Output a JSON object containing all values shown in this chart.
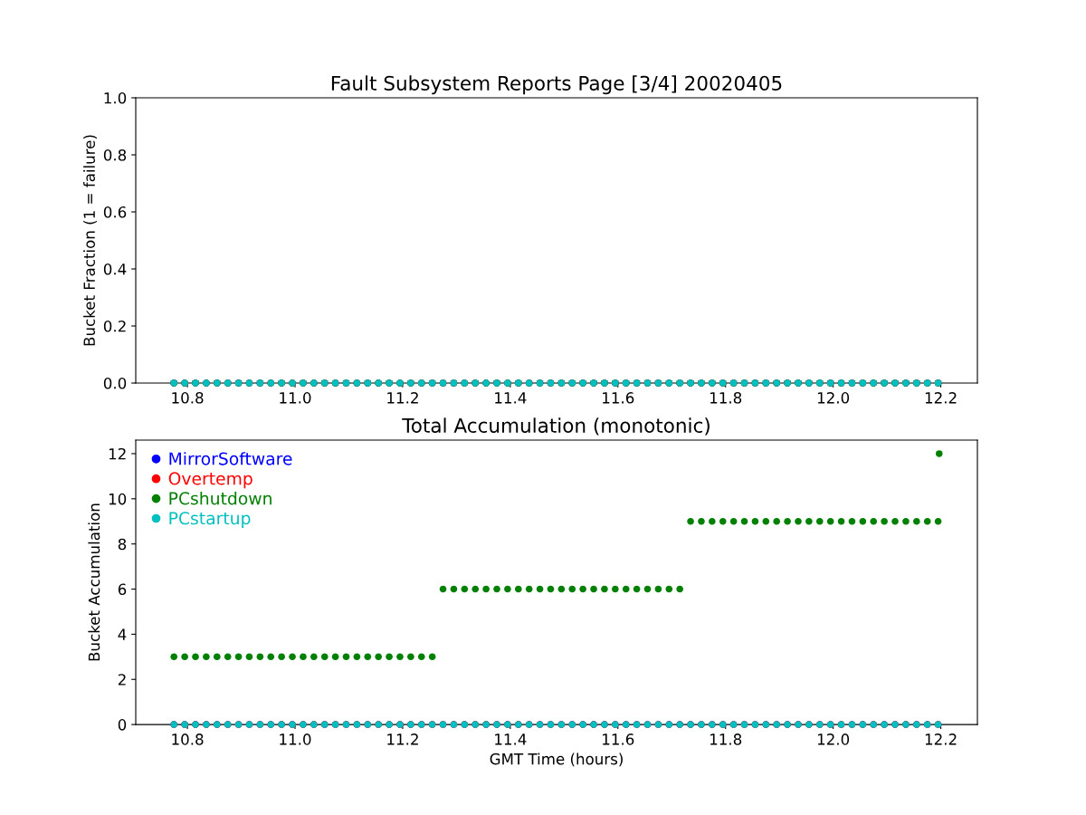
{
  "chart_data": [
    {
      "type": "scatter",
      "title": "Fault Subsystem Reports Page [3/4] 20020405",
      "ylabel": "Bucket Fraction (1 = failure)",
      "x": [
        10.775,
        10.795,
        10.815,
        10.835,
        10.855,
        10.875,
        10.895,
        10.915,
        10.935,
        10.955,
        10.975,
        10.995,
        11.015,
        11.035,
        11.055,
        11.075,
        11.095,
        11.115,
        11.135,
        11.155,
        11.175,
        11.195,
        11.215,
        11.235,
        11.255,
        11.275,
        11.295,
        11.315,
        11.335,
        11.355,
        11.375,
        11.395,
        11.415,
        11.435,
        11.455,
        11.475,
        11.495,
        11.515,
        11.535,
        11.555,
        11.575,
        11.595,
        11.615,
        11.635,
        11.655,
        11.675,
        11.695,
        11.715,
        11.735,
        11.755,
        11.775,
        11.795,
        11.815,
        11.835,
        11.855,
        11.875,
        11.895,
        11.915,
        11.935,
        11.955,
        11.975,
        11.995,
        12.015,
        12.035,
        12.055,
        12.075,
        12.095,
        12.115,
        12.135,
        12.155,
        12.175,
        12.195
      ],
      "series": [
        {
          "color": "#0000ff",
          "values": [
            0,
            0,
            0,
            0,
            0,
            0,
            0,
            0,
            0,
            0,
            0,
            0,
            0,
            0,
            0,
            0,
            0,
            0,
            0,
            0,
            0,
            0,
            0,
            0,
            0,
            0,
            0,
            0,
            0,
            0,
            0,
            0,
            0,
            0,
            0,
            0,
            0,
            0,
            0,
            0,
            0,
            0,
            0,
            0,
            0,
            0,
            0,
            0,
            0,
            0,
            0,
            0,
            0,
            0,
            0,
            0,
            0,
            0,
            0,
            0,
            0,
            0,
            0,
            0,
            0,
            0,
            0,
            0,
            0,
            0,
            0,
            0
          ]
        },
        {
          "color": "#ff0000",
          "values": [
            0,
            0,
            0,
            0,
            0,
            0,
            0,
            0,
            0,
            0,
            0,
            0,
            0,
            0,
            0,
            0,
            0,
            0,
            0,
            0,
            0,
            0,
            0,
            0,
            0,
            0,
            0,
            0,
            0,
            0,
            0,
            0,
            0,
            0,
            0,
            0,
            0,
            0,
            0,
            0,
            0,
            0,
            0,
            0,
            0,
            0,
            0,
            0,
            0,
            0,
            0,
            0,
            0,
            0,
            0,
            0,
            0,
            0,
            0,
            0,
            0,
            0,
            0,
            0,
            0,
            0,
            0,
            0,
            0,
            0,
            0,
            0
          ]
        },
        {
          "color": "#008000",
          "values": [
            0,
            0,
            0,
            0,
            0,
            0,
            0,
            0,
            0,
            0,
            0,
            0,
            0,
            0,
            0,
            0,
            0,
            0,
            0,
            0,
            0,
            0,
            0,
            0,
            0,
            0,
            0,
            0,
            0,
            0,
            0,
            0,
            0,
            0,
            0,
            0,
            0,
            0,
            0,
            0,
            0,
            0,
            0,
            0,
            0,
            0,
            0,
            0,
            0,
            0,
            0,
            0,
            0,
            0,
            0,
            0,
            0,
            0,
            0,
            0,
            0,
            0,
            0,
            0,
            0,
            0,
            0,
            0,
            0,
            0,
            0,
            0
          ]
        },
        {
          "color": "#00bfbf",
          "values": [
            0,
            0,
            0,
            0,
            0,
            0,
            0,
            0,
            0,
            0,
            0,
            0,
            0,
            0,
            0,
            0,
            0,
            0,
            0,
            0,
            0,
            0,
            0,
            0,
            0,
            0,
            0,
            0,
            0,
            0,
            0,
            0,
            0,
            0,
            0,
            0,
            0,
            0,
            0,
            0,
            0,
            0,
            0,
            0,
            0,
            0,
            0,
            0,
            0,
            0,
            0,
            0,
            0,
            0,
            0,
            0,
            0,
            0,
            0,
            0,
            0,
            0,
            0,
            0,
            0,
            0,
            0,
            0,
            0,
            0,
            0,
            0
          ]
        }
      ],
      "xlim": [
        10.704,
        12.268
      ],
      "xticks": [
        {
          "value": 10.8,
          "label": "10.8"
        },
        {
          "value": 11.0,
          "label": "11.0"
        },
        {
          "value": 11.2,
          "label": "11.2"
        },
        {
          "value": 11.4,
          "label": "11.4"
        },
        {
          "value": 11.6,
          "label": "11.6"
        },
        {
          "value": 11.8,
          "label": "11.8"
        },
        {
          "value": 12.0,
          "label": "12.0"
        },
        {
          "value": 12.2,
          "label": "12.2"
        }
      ],
      "ylim": [
        0,
        1
      ],
      "yticks": [
        {
          "value": 0,
          "label": "0.0"
        },
        {
          "value": 0.2,
          "label": "0.2"
        },
        {
          "value": 0.4,
          "label": "0.4"
        },
        {
          "value": 0.6,
          "label": "0.6"
        },
        {
          "value": 0.8,
          "label": "0.8"
        },
        {
          "value": 1,
          "label": "1.0"
        }
      ],
      "grid": false,
      "legend": false,
      "marker": "circle"
    },
    {
      "type": "scatter",
      "title": "Total Accumulation (monotonic)",
      "xlabel": "GMT Time (hours)",
      "ylabel": "Bucket Accumulation",
      "x": [
        10.775,
        10.795,
        10.815,
        10.835,
        10.855,
        10.875,
        10.895,
        10.915,
        10.935,
        10.955,
        10.975,
        10.995,
        11.015,
        11.035,
        11.055,
        11.075,
        11.095,
        11.115,
        11.135,
        11.155,
        11.175,
        11.195,
        11.215,
        11.235,
        11.255,
        11.275,
        11.295,
        11.315,
        11.335,
        11.355,
        11.375,
        11.395,
        11.415,
        11.435,
        11.455,
        11.475,
        11.495,
        11.515,
        11.535,
        11.555,
        11.575,
        11.595,
        11.615,
        11.635,
        11.655,
        11.675,
        11.695,
        11.715,
        11.735,
        11.755,
        11.775,
        11.795,
        11.815,
        11.835,
        11.855,
        11.875,
        11.895,
        11.915,
        11.935,
        11.955,
        11.975,
        11.995,
        12.015,
        12.035,
        12.055,
        12.075,
        12.095,
        12.115,
        12.135,
        12.155,
        12.175,
        12.195
      ],
      "series": [
        {
          "name": "MirrorSoftware",
          "color": "#0000ff",
          "values": [
            0,
            0,
            0,
            0,
            0,
            0,
            0,
            0,
            0,
            0,
            0,
            0,
            0,
            0,
            0,
            0,
            0,
            0,
            0,
            0,
            0,
            0,
            0,
            0,
            0,
            0,
            0,
            0,
            0,
            0,
            0,
            0,
            0,
            0,
            0,
            0,
            0,
            0,
            0,
            0,
            0,
            0,
            0,
            0,
            0,
            0,
            0,
            0,
            0,
            0,
            0,
            0,
            0,
            0,
            0,
            0,
            0,
            0,
            0,
            0,
            0,
            0,
            0,
            0,
            0,
            0,
            0,
            0,
            0,
            0,
            0,
            0
          ]
        },
        {
          "name": "Overtemp",
          "color": "#ff0000",
          "values": [
            0,
            0,
            0,
            0,
            0,
            0,
            0,
            0,
            0,
            0,
            0,
            0,
            0,
            0,
            0,
            0,
            0,
            0,
            0,
            0,
            0,
            0,
            0,
            0,
            0,
            0,
            0,
            0,
            0,
            0,
            0,
            0,
            0,
            0,
            0,
            0,
            0,
            0,
            0,
            0,
            0,
            0,
            0,
            0,
            0,
            0,
            0,
            0,
            0,
            0,
            0,
            0,
            0,
            0,
            0,
            0,
            0,
            0,
            0,
            0,
            0,
            0,
            0,
            0,
            0,
            0,
            0,
            0,
            0,
            0,
            0,
            0
          ]
        },
        {
          "name": "PCshutdown",
          "color": "#008000",
          "x": [
            10.775,
            10.795,
            10.815,
            10.835,
            10.855,
            10.875,
            10.895,
            10.915,
            10.935,
            10.955,
            10.975,
            10.995,
            11.015,
            11.035,
            11.055,
            11.075,
            11.095,
            11.115,
            11.135,
            11.155,
            11.175,
            11.195,
            11.215,
            11.235,
            11.255,
            11.275,
            11.295,
            11.315,
            11.335,
            11.355,
            11.375,
            11.395,
            11.415,
            11.435,
            11.455,
            11.475,
            11.495,
            11.515,
            11.535,
            11.555,
            11.575,
            11.595,
            11.615,
            11.635,
            11.655,
            11.675,
            11.695,
            11.715,
            11.735,
            11.755,
            11.775,
            11.795,
            11.815,
            11.835,
            11.855,
            11.875,
            11.895,
            11.915,
            11.935,
            11.955,
            11.975,
            11.995,
            12.015,
            12.035,
            12.055,
            12.075,
            12.095,
            12.115,
            12.135,
            12.155,
            12.175,
            12.195,
            12.197
          ],
          "values": [
            3,
            3,
            3,
            3,
            3,
            3,
            3,
            3,
            3,
            3,
            3,
            3,
            3,
            3,
            3,
            3,
            3,
            3,
            3,
            3,
            3,
            3,
            3,
            3,
            3,
            6,
            6,
            6,
            6,
            6,
            6,
            6,
            6,
            6,
            6,
            6,
            6,
            6,
            6,
            6,
            6,
            6,
            6,
            6,
            6,
            6,
            6,
            6,
            9,
            9,
            9,
            9,
            9,
            9,
            9,
            9,
            9,
            9,
            9,
            9,
            9,
            9,
            9,
            9,
            9,
            9,
            9,
            9,
            9,
            9,
            9,
            9,
            12
          ]
        },
        {
          "name": "PCstartup",
          "color": "#00bfbf",
          "values": [
            0,
            0,
            0,
            0,
            0,
            0,
            0,
            0,
            0,
            0,
            0,
            0,
            0,
            0,
            0,
            0,
            0,
            0,
            0,
            0,
            0,
            0,
            0,
            0,
            0,
            0,
            0,
            0,
            0,
            0,
            0,
            0,
            0,
            0,
            0,
            0,
            0,
            0,
            0,
            0,
            0,
            0,
            0,
            0,
            0,
            0,
            0,
            0,
            0,
            0,
            0,
            0,
            0,
            0,
            0,
            0,
            0,
            0,
            0,
            0,
            0,
            0,
            0,
            0,
            0,
            0,
            0,
            0,
            0,
            0,
            0,
            0
          ]
        }
      ],
      "xlim": [
        10.704,
        12.268
      ],
      "xticks": [
        {
          "value": 10.8,
          "label": "10.8"
        },
        {
          "value": 11.0,
          "label": "11.0"
        },
        {
          "value": 11.2,
          "label": "11.2"
        },
        {
          "value": 11.4,
          "label": "11.4"
        },
        {
          "value": 11.6,
          "label": "11.6"
        },
        {
          "value": 11.8,
          "label": "11.8"
        },
        {
          "value": 12.0,
          "label": "12.0"
        },
        {
          "value": 12.2,
          "label": "12.2"
        }
      ],
      "ylim": [
        0,
        12.6
      ],
      "yticks": [
        0,
        2,
        4,
        6,
        8,
        10,
        12
      ],
      "grid": false,
      "legend": "top left",
      "marker": "circle"
    }
  ]
}
